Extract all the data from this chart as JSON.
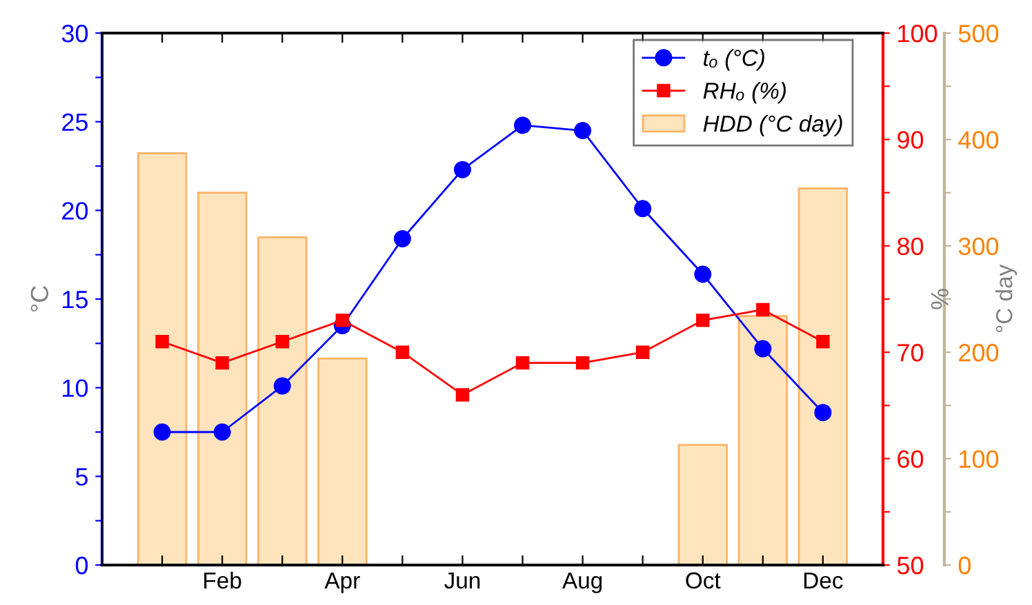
{
  "chart_data": {
    "type": "line",
    "categories": [
      null,
      "Feb",
      null,
      "Apr",
      null,
      "Jun",
      null,
      "Aug",
      null,
      "Oct",
      null,
      "Dec"
    ],
    "ylabel": "°C",
    "y2label": "%",
    "y3label": "°C day",
    "ylim": [
      0,
      30
    ],
    "yticks": [
      0,
      {
        "value": 2.5,
        "label": null
      },
      5,
      {
        "value": 7.5,
        "label": null
      },
      10,
      {
        "value": 12.5,
        "label": null
      },
      15,
      {
        "value": 17.5,
        "label": null
      },
      20,
      {
        "value": 22.5,
        "label": null
      },
      25,
      {
        "value": 27.5,
        "label": null
      },
      30
    ],
    "y2lim": [
      50,
      100
    ],
    "y2ticks": [
      50,
      {
        "value": 55,
        "label": null
      },
      60,
      {
        "value": 65,
        "label": null
      },
      70,
      {
        "value": 75,
        "label": null
      },
      80,
      {
        "value": 85,
        "label": null
      },
      90,
      {
        "value": 95,
        "label": null
      },
      100
    ],
    "y3lim": [
      0,
      500
    ],
    "y3ticks": [
      0,
      {
        "value": 50,
        "label": null
      },
      100,
      {
        "value": 150,
        "label": null
      },
      200,
      {
        "value": 250,
        "label": null
      },
      300,
      {
        "value": 350,
        "label": null
      },
      400,
      {
        "value": 450,
        "label": null
      },
      500
    ],
    "legend": "top right",
    "grid": false,
    "series": [
      {
        "name": "HDD (°C day)",
        "type": "bar",
        "axis": "y3",
        "color": "#fde4bd",
        "values": [
          387,
          350,
          308,
          194,
          null,
          null,
          null,
          null,
          null,
          113,
          234,
          354
        ]
      },
      {
        "name": "tₒ (°C)",
        "axis": "y",
        "color": "#0000ff",
        "marker": "circle",
        "values": [
          7.5,
          7.5,
          10.1,
          13.5,
          18.4,
          22.3,
          24.8,
          24.5,
          20.1,
          16.4,
          12.2,
          8.6
        ]
      },
      {
        "name": "RHₒ (%)",
        "axis": "y2",
        "color": "#ff0000",
        "marker": "square",
        "values": [
          71,
          69,
          71,
          73,
          70,
          66,
          69,
          69,
          70,
          73,
          74,
          71
        ]
      }
    ]
  }
}
